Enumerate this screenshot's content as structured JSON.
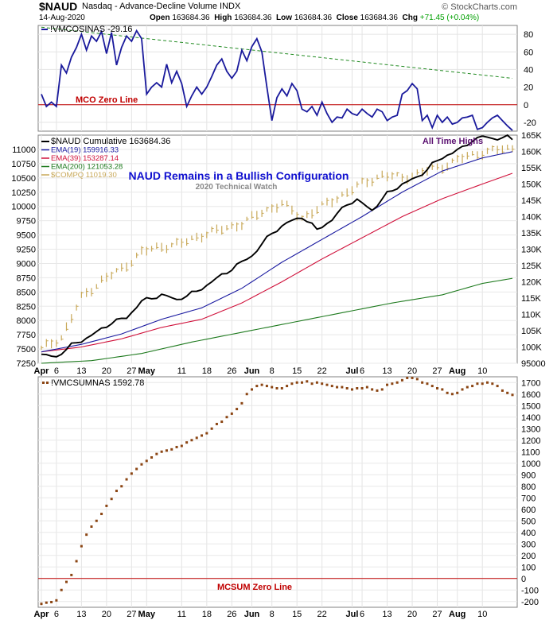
{
  "header": {
    "symbol": "$NAUD",
    "name": "Nasdaq - Advance-Decline Volume  INDX",
    "watermark": "© StockCharts.com",
    "date": "14-Aug-2020",
    "open_label": "Open",
    "open": "163684.36",
    "high_label": "High",
    "high": "163684.36",
    "low_label": "Low",
    "low": "163684.36",
    "close_label": "Close",
    "close": "163684.36",
    "chg_label": "Chg",
    "chg": "+71.45 (+0.04%)"
  },
  "colors": {
    "mco": "#1a1a9c",
    "zero_line": "#c00000",
    "trend": "#228b22",
    "naud": "#000000",
    "ema19": "#1a1aa0",
    "ema39": "#d0103a",
    "ema200": "#1e7a1e",
    "compq": "#c8a858",
    "mcsum": "#8b4513",
    "annot_blue": "#1010d0",
    "annot_purple": "#5a1070"
  },
  "chart_data": [
    {
      "type": "line",
      "panel": "top",
      "title": "!VMCOSINAS -29.16",
      "x": [
        "Apr 1",
        "Apr 2",
        "Apr 3",
        "Apr 6",
        "Apr 7",
        "Apr 8",
        "Apr 9",
        "Apr 13",
        "Apr 14",
        "Apr 15",
        "Apr 16",
        "Apr 17",
        "Apr 20",
        "Apr 21",
        "Apr 22",
        "Apr 23",
        "Apr 24",
        "Apr 27",
        "Apr 28",
        "Apr 29",
        "Apr 30",
        "May 1",
        "May 4",
        "May 5",
        "May 6",
        "May 7",
        "May 8",
        "May 11",
        "May 12",
        "May 13",
        "May 14",
        "May 15",
        "May 18",
        "May 19",
        "May 20",
        "May 21",
        "May 22",
        "May 26",
        "May 27",
        "May 28",
        "May 29",
        "Jun 1",
        "Jun 2",
        "Jun 3",
        "Jun 4",
        "Jun 5",
        "Jun 8",
        "Jun 9",
        "Jun 10",
        "Jun 11",
        "Jun 12",
        "Jun 15",
        "Jun 16",
        "Jun 17",
        "Jun 18",
        "Jun 19",
        "Jun 22",
        "Jun 23",
        "Jun 24",
        "Jun 25",
        "Jun 26",
        "Jun 29",
        "Jun 30",
        "Jul 1",
        "Jul 2",
        "Jul 6",
        "Jul 7",
        "Jul 8",
        "Jul 9",
        "Jul 10",
        "Jul 13",
        "Jul 14",
        "Jul 15",
        "Jul 16",
        "Jul 17",
        "Jul 20",
        "Jul 21",
        "Jul 22",
        "Jul 23",
        "Jul 24",
        "Jul 27",
        "Jul 28",
        "Jul 29",
        "Jul 30",
        "Jul 31",
        "Aug 3",
        "Aug 4",
        "Aug 5",
        "Aug 6",
        "Aug 7",
        "Aug 10",
        "Aug 11",
        "Aug 12",
        "Aug 13",
        "Aug 14"
      ],
      "values": [
        12,
        -2,
        3,
        -2,
        45,
        36,
        54,
        65,
        80,
        62,
        78,
        72,
        83,
        58,
        82,
        45,
        65,
        78,
        72,
        84,
        75,
        12,
        20,
        25,
        20,
        46,
        25,
        38,
        24,
        -2,
        10,
        20,
        12,
        20,
        32,
        45,
        52,
        38,
        30,
        38,
        62,
        50,
        66,
        75,
        60,
        20,
        -18,
        8,
        18,
        10,
        24,
        16,
        -5,
        -8,
        -2,
        -12,
        3,
        -10,
        -20,
        -14,
        -15,
        -5,
        -10,
        -12,
        -5,
        -10,
        -14,
        -5,
        -8,
        -18,
        -14,
        -12,
        12,
        16,
        24,
        18,
        -18,
        -12,
        -26,
        -12,
        -20,
        -14,
        -22,
        -20,
        -15,
        -14,
        -12,
        -28,
        -26,
        -20,
        -15,
        -12,
        -18,
        -24,
        -29.16
      ],
      "ylim": [
        -30,
        90
      ],
      "yticks": [
        80,
        60,
        40,
        20,
        0,
        -20
      ],
      "annotations": [
        "MCO Zero Line"
      ],
      "trendline": {
        "from": [
          0,
          88
        ],
        "to": [
          94,
          30
        ]
      }
    },
    {
      "type": "line",
      "panel": "middle",
      "title": "$NAUD Cumulative 163684.36",
      "x": [
        "Apr 6",
        "Aug 14"
      ],
      "series": [
        {
          "name": "$NAUD Cumulative 163684.36"
        },
        {
          "name": "EMA(19) 159916.33"
        },
        {
          "name": "EMA(39) 153287.14"
        },
        {
          "name": "EMA(200) 121053.28"
        },
        {
          "name": "$COMPQ 11019.30"
        }
      ],
      "naud_anchors": [
        [
          0,
          97500
        ],
        [
          3,
          97000
        ],
        [
          6,
          100500
        ],
        [
          10,
          103500
        ],
        [
          14,
          107500
        ],
        [
          17,
          109000
        ],
        [
          20,
          114000
        ],
        [
          24,
          116000
        ],
        [
          27,
          114500
        ],
        [
          31,
          117000
        ],
        [
          35,
          121000
        ],
        [
          38,
          124000
        ],
        [
          42,
          128000
        ],
        [
          46,
          135000
        ],
        [
          49,
          138000
        ],
        [
          52,
          140000
        ],
        [
          55,
          136000
        ],
        [
          58,
          139000
        ],
        [
          61,
          144000
        ],
        [
          63,
          145000
        ],
        [
          66,
          142000
        ],
        [
          69,
          147000
        ],
        [
          72,
          150000
        ],
        [
          75,
          152000
        ],
        [
          78,
          156000
        ],
        [
          81,
          159000
        ],
        [
          84,
          161000
        ],
        [
          86,
          163500
        ],
        [
          88,
          164500
        ],
        [
          90,
          164000
        ],
        [
          93,
          164300
        ],
        [
          94,
          163684
        ]
      ],
      "ema19_anchors": [
        [
          0,
          98500
        ],
        [
          8,
          100800
        ],
        [
          16,
          104000
        ],
        [
          24,
          108500
        ],
        [
          32,
          112000
        ],
        [
          40,
          118000
        ],
        [
          48,
          126000
        ],
        [
          56,
          133000
        ],
        [
          64,
          140000
        ],
        [
          72,
          147500
        ],
        [
          80,
          154000
        ],
        [
          88,
          158000
        ],
        [
          94,
          159916
        ]
      ],
      "ema39_anchors": [
        [
          0,
          98500
        ],
        [
          8,
          100000
        ],
        [
          16,
          102500
        ],
        [
          24,
          106000
        ],
        [
          32,
          108500
        ],
        [
          40,
          113500
        ],
        [
          48,
          120000
        ],
        [
          56,
          127000
        ],
        [
          64,
          133500
        ],
        [
          72,
          140000
        ],
        [
          80,
          145500
        ],
        [
          88,
          150000
        ],
        [
          94,
          153287
        ]
      ],
      "ema200_anchors": [
        [
          0,
          95000
        ],
        [
          10,
          95800
        ],
        [
          20,
          98000
        ],
        [
          30,
          101500
        ],
        [
          40,
          104500
        ],
        [
          50,
          107500
        ],
        [
          60,
          110500
        ],
        [
          70,
          113500
        ],
        [
          80,
          116000
        ],
        [
          88,
          119500
        ],
        [
          94,
          121053
        ]
      ],
      "compq_anchors": [
        [
          0,
          7500
        ],
        [
          4,
          7700
        ],
        [
          8,
          8400
        ],
        [
          12,
          8700
        ],
        [
          16,
          8900
        ],
        [
          20,
          9200
        ],
        [
          24,
          9300
        ],
        [
          28,
          9350
        ],
        [
          32,
          9500
        ],
        [
          36,
          9600
        ],
        [
          40,
          9700
        ],
        [
          44,
          9900
        ],
        [
          48,
          10050
        ],
        [
          52,
          9800
        ],
        [
          56,
          10000
        ],
        [
          60,
          10200
        ],
        [
          64,
          10400
        ],
        [
          68,
          10550
        ],
        [
          72,
          10500
        ],
        [
          76,
          10600
        ],
        [
          80,
          10700
        ],
        [
          84,
          10850
        ],
        [
          88,
          10950
        ],
        [
          92,
          11000
        ],
        [
          94,
          11019
        ]
      ],
      "ylim_left": [
        7250,
        11250
      ],
      "ylim_right": [
        95000,
        165000
      ],
      "yticks_left": [
        11000,
        10750,
        10500,
        10250,
        10000,
        9750,
        9500,
        9250,
        9000,
        8750,
        8500,
        8250,
        8000,
        7750,
        7500,
        7250
      ],
      "yticks_right": [
        "165K",
        "160K",
        "155K",
        "150K",
        "145K",
        "140K",
        "135K",
        "130K",
        "125K",
        "120K",
        "115K",
        "110K",
        "105K",
        "100K",
        "95000"
      ],
      "annotations": [
        "NAUD Remains in a Bullish Configuration",
        "2020 Technical Watch",
        "All Time Highs"
      ]
    },
    {
      "type": "scatter",
      "panel": "bottom",
      "title": "!VMCSUMNAS 1592.78",
      "values": [
        -220,
        -210,
        -205,
        -190,
        -100,
        -30,
        30,
        150,
        280,
        380,
        450,
        500,
        560,
        630,
        690,
        760,
        800,
        860,
        910,
        950,
        990,
        1020,
        1050,
        1080,
        1100,
        1110,
        1120,
        1140,
        1150,
        1180,
        1200,
        1220,
        1240,
        1260,
        1300,
        1340,
        1360,
        1400,
        1430,
        1470,
        1520,
        1600,
        1640,
        1670,
        1680,
        1670,
        1660,
        1650,
        1650,
        1670,
        1690,
        1700,
        1700,
        1710,
        1690,
        1700,
        1690,
        1680,
        1670,
        1660,
        1660,
        1650,
        1640,
        1650,
        1650,
        1660,
        1640,
        1630,
        1640,
        1680,
        1690,
        1700,
        1720,
        1740,
        1740,
        1730,
        1700,
        1690,
        1670,
        1650,
        1640,
        1610,
        1600,
        1610,
        1640,
        1660,
        1670,
        1690,
        1690,
        1700,
        1690,
        1670,
        1630,
        1610,
        1592.78
      ],
      "ylim": [
        -250,
        1750
      ],
      "yticks": [
        1700,
        1600,
        1500,
        1400,
        1300,
        1200,
        1100,
        1000,
        900,
        800,
        700,
        600,
        500,
        400,
        300,
        200,
        100,
        0,
        -100,
        -200
      ],
      "annotations": [
        "MCSUM Zero Line"
      ]
    }
  ],
  "x_axis_labels": [
    "Apr",
    "6",
    "13",
    "20",
    "27",
    "May",
    "11",
    "18",
    "26",
    "Jun",
    "8",
    "15",
    "22",
    "Jul",
    "6",
    "13",
    "20",
    "27",
    "Aug",
    "10"
  ]
}
